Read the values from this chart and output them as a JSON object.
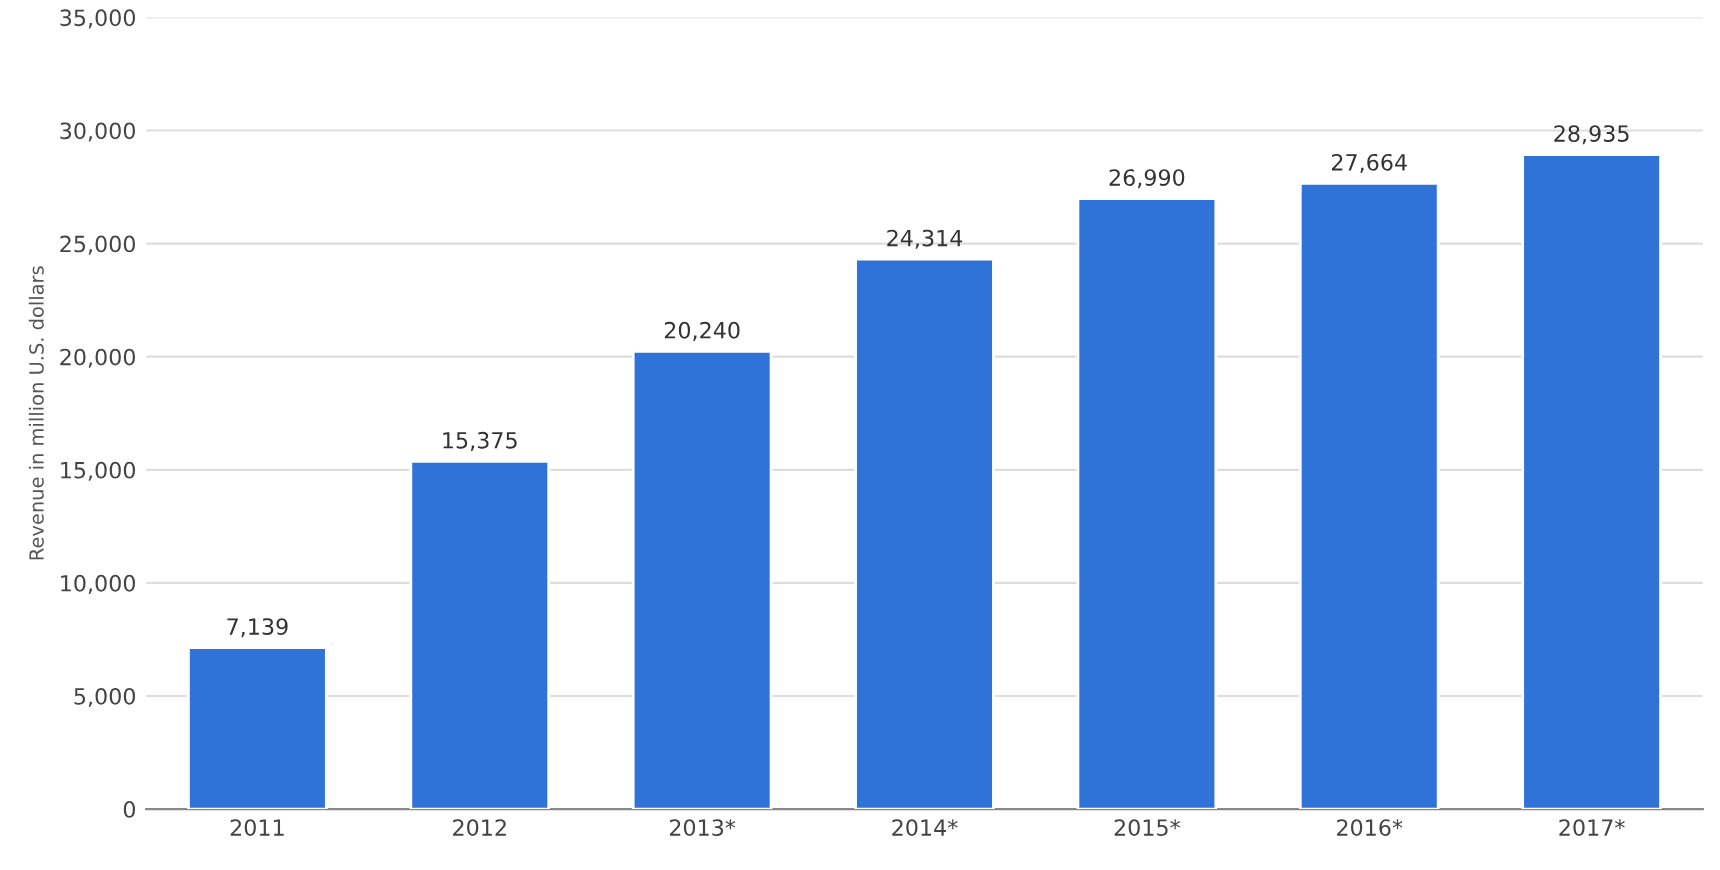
{
  "chart_data": {
    "type": "bar",
    "ylabel": "Revenue in million U.S. dollars",
    "categories": [
      "2011",
      "2012",
      "2013*",
      "2014*",
      "2015*",
      "2016*",
      "2017*"
    ],
    "values": [
      7139,
      15375,
      20240,
      24314,
      26990,
      27664,
      28935
    ],
    "value_labels": [
      "7,139",
      "15,375",
      "20,240",
      "24,314",
      "26,990",
      "27,664",
      "28,935"
    ],
    "color": "#2f73d8",
    "ylim": [
      0,
      35000
    ],
    "yticks": [
      {
        "value": 0,
        "label": "0"
      },
      {
        "value": 5000,
        "label": "5,000"
      },
      {
        "value": 10000,
        "label": "10,000"
      },
      {
        "value": 15000,
        "label": "15,000"
      },
      {
        "value": 20000,
        "label": "20,000"
      },
      {
        "value": 25000,
        "label": "25,000"
      },
      {
        "value": 30000,
        "label": "30,000"
      },
      {
        "value": 35000,
        "label": "35,000"
      }
    ],
    "grid": "y"
  }
}
